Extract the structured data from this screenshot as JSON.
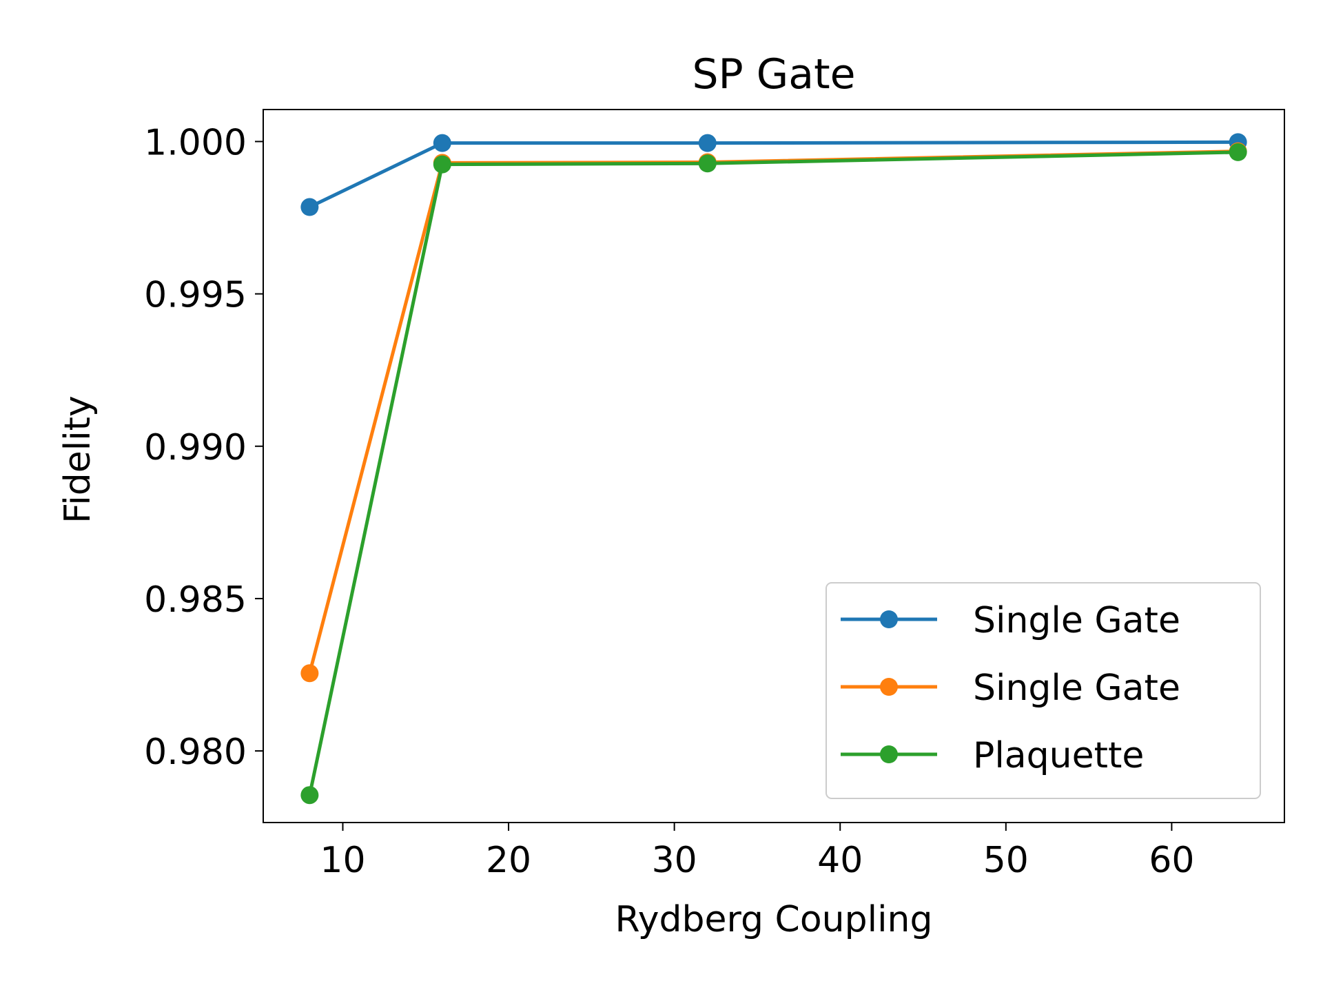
{
  "chart_data": {
    "type": "line",
    "title": "SP Gate",
    "xlabel": "Rydberg Coupling",
    "ylabel": "Fidelity",
    "xlim": [
      5.2,
      66.8
    ],
    "ylim": [
      0.97765,
      1.00105
    ],
    "xticks": [
      10,
      20,
      30,
      40,
      50,
      60
    ],
    "xtick_labels": [
      "10",
      "20",
      "30",
      "40",
      "50",
      "60"
    ],
    "yticks": [
      0.98,
      0.985,
      0.99,
      0.995,
      1.0
    ],
    "ytick_labels": [
      "0.980",
      "0.985",
      "0.990",
      "0.995",
      "1.000"
    ],
    "grid": false,
    "legend_position": "lower-right",
    "x": [
      8,
      16,
      32,
      64
    ],
    "series": [
      {
        "name": "Single Gate",
        "color": "#1f77b4",
        "values": [
          0.99785,
          0.99995,
          0.99995,
          0.99998
        ]
      },
      {
        "name": "Single Gate",
        "color": "#ff7f0e",
        "values": [
          0.98255,
          0.9993,
          0.99932,
          0.99968
        ]
      },
      {
        "name": "Plaquette",
        "color": "#2ca02c",
        "values": [
          0.97855,
          0.99925,
          0.99928,
          0.99965
        ]
      }
    ]
  }
}
